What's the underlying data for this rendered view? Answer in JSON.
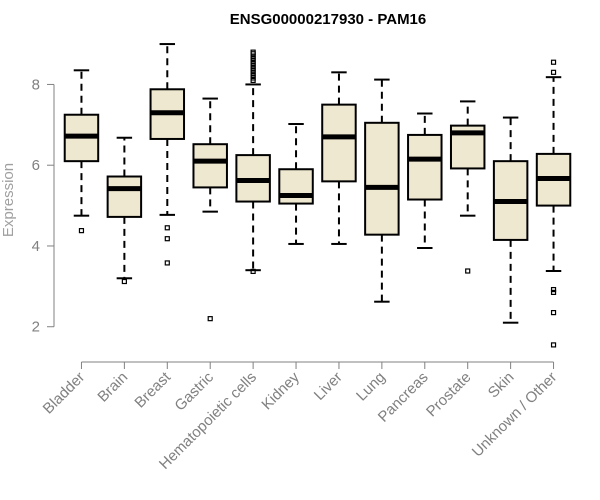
{
  "chart_data": {
    "type": "boxplot",
    "title": "ENSG00000217930 - PAM16",
    "xlabel": "",
    "ylabel": "Expression",
    "ylim": [
      1.3,
      9.15
    ],
    "yticks": [
      2,
      4,
      6,
      8
    ],
    "grid": false,
    "legend": "none",
    "box_fill": "#efe8d0",
    "box_stroke": "#000000",
    "axis_color": "#808080",
    "categories": [
      "Bladder",
      "Brain",
      "Breast",
      "Gastric",
      "Hematopoietic cells",
      "Kidney",
      "Liver",
      "Lung",
      "Pancreas",
      "Prostate",
      "Skin",
      "Unknown / Other"
    ],
    "boxes": [
      {
        "label": "Bladder",
        "q1": 6.1,
        "median": 6.72,
        "q3": 7.25,
        "whisker_low": 4.75,
        "whisker_high": 8.35,
        "outliers": [
          4.38
        ]
      },
      {
        "label": "Brain",
        "q1": 4.72,
        "median": 5.42,
        "q3": 5.72,
        "whisker_low": 3.2,
        "whisker_high": 6.68,
        "outliers": [
          3.12
        ]
      },
      {
        "label": "Breast",
        "q1": 6.65,
        "median": 7.3,
        "q3": 7.88,
        "whisker_low": 4.77,
        "whisker_high": 9.0,
        "outliers": [
          4.45,
          4.18,
          3.58
        ]
      },
      {
        "label": "Gastric",
        "q1": 5.45,
        "median": 6.1,
        "q3": 6.52,
        "whisker_low": 4.85,
        "whisker_high": 7.65,
        "outliers": [
          2.2
        ]
      },
      {
        "label": "Hematopoietic cells",
        "q1": 5.1,
        "median": 5.62,
        "q3": 6.25,
        "whisker_low": 3.4,
        "whisker_high": 8.0,
        "outliers": [
          3.37,
          8.1,
          8.16,
          8.22,
          8.28,
          8.34,
          8.4,
          8.46,
          8.52,
          8.58,
          8.64,
          8.7,
          8.76,
          8.8
        ]
      },
      {
        "label": "Kidney",
        "q1": 5.05,
        "median": 5.25,
        "q3": 5.9,
        "whisker_low": 4.05,
        "whisker_high": 7.02,
        "outliers": []
      },
      {
        "label": "Liver",
        "q1": 5.6,
        "median": 6.7,
        "q3": 7.5,
        "whisker_low": 4.05,
        "whisker_high": 8.3,
        "outliers": []
      },
      {
        "label": "Lung",
        "q1": 4.28,
        "median": 5.45,
        "q3": 7.05,
        "whisker_low": 2.62,
        "whisker_high": 8.12,
        "outliers": []
      },
      {
        "label": "Pancreas",
        "q1": 5.15,
        "median": 6.15,
        "q3": 6.75,
        "whisker_low": 3.95,
        "whisker_high": 7.28,
        "outliers": []
      },
      {
        "label": "Prostate",
        "q1": 5.92,
        "median": 6.8,
        "q3": 6.98,
        "whisker_low": 4.75,
        "whisker_high": 7.58,
        "outliers": [
          3.38
        ]
      },
      {
        "label": "Skin",
        "q1": 4.15,
        "median": 5.1,
        "q3": 6.1,
        "whisker_low": 2.1,
        "whisker_high": 7.18,
        "outliers": []
      },
      {
        "label": "Unknown / Other",
        "q1": 5.0,
        "median": 5.67,
        "q3": 6.28,
        "whisker_low": 3.38,
        "whisker_high": 8.18,
        "outliers": [
          8.55,
          8.3,
          2.92,
          2.85,
          2.35,
          1.55
        ]
      }
    ]
  }
}
